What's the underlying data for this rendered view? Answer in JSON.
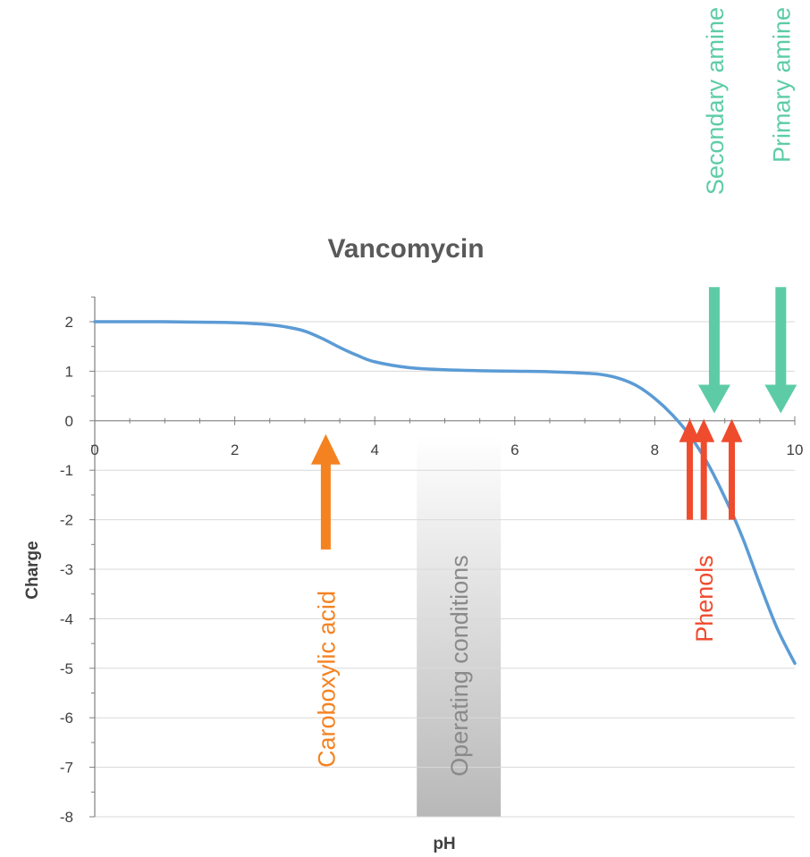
{
  "chart_data": {
    "type": "line",
    "title": "Vancomycin",
    "xlabel": "pH",
    "ylabel": "Charge",
    "xlim": [
      0,
      10
    ],
    "ylim": [
      -8,
      2
    ],
    "grid": "horizontal",
    "x_ticks": [
      "0",
      "2",
      "4",
      "6",
      "8",
      "10"
    ],
    "y_ticks": [
      "2",
      "1",
      "0",
      "-1",
      "-2",
      "-3",
      "-4",
      "-5",
      "-6",
      "-7",
      "-8"
    ],
    "series": [
      {
        "color": "#5B9BD5",
        "x": [
          0,
          0.5,
          1,
          1.5,
          2,
          2.5,
          2.75,
          3,
          3.25,
          3.5,
          3.75,
          4,
          4.5,
          5,
          5.5,
          6,
          6.5,
          7,
          7.25,
          7.5,
          7.75,
          8,
          8.25,
          8.5,
          8.75,
          9,
          9.25,
          9.5,
          9.75,
          10
        ],
        "y": [
          2,
          2,
          2,
          1.99,
          1.98,
          1.94,
          1.89,
          1.81,
          1.66,
          1.48,
          1.32,
          1.19,
          1.07,
          1.03,
          1.01,
          1.0,
          0.99,
          0.96,
          0.93,
          0.85,
          0.7,
          0.45,
          0.12,
          -0.3,
          -0.85,
          -1.55,
          -2.35,
          -3.3,
          -4.2,
          -4.9
        ]
      }
    ]
  },
  "annotations": {
    "carboxylic": {
      "label": "Caroboxylic acid",
      "color": "#F58220",
      "ph": 3.3,
      "direction": "up"
    },
    "operating": {
      "label": "Operating conditions",
      "ph_range": [
        4.6,
        5.8
      ]
    },
    "phenols": {
      "label": "Phenols",
      "color": "#EF4B2D",
      "ph": [
        8.5,
        8.7,
        9.1
      ],
      "direction": "up"
    },
    "secondary_amine": {
      "label": "Secondary amine",
      "color": "#5DCCA6",
      "ph": 8.85,
      "direction": "down"
    },
    "primary_amine": {
      "label": "Primary amine",
      "color": "#5DCCA6",
      "ph": 9.8,
      "direction": "down"
    }
  }
}
